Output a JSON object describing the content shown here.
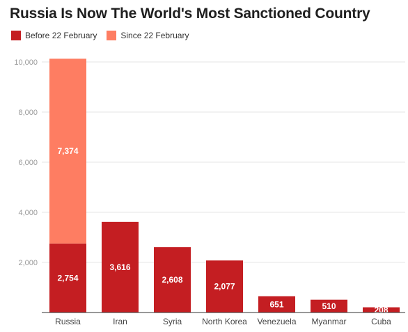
{
  "chart_data": {
    "type": "bar",
    "stacked": true,
    "title": "Russia Is Now The World's Most Sanctioned Country",
    "categories": [
      "Russia",
      "Iran",
      "Syria",
      "North Korea",
      "Venezuela",
      "Myanmar",
      "Cuba"
    ],
    "series": [
      {
        "name": "Before 22 February",
        "color": "#c41e22",
        "values": [
          2754,
          3616,
          2608,
          2077,
          651,
          510,
          208
        ],
        "labels": [
          "2,754",
          "3,616",
          "2,608",
          "2,077",
          "651",
          "510",
          "208"
        ]
      },
      {
        "name": "Since 22 February",
        "color": "#fe7d62",
        "values": [
          7374,
          0,
          0,
          0,
          0,
          0,
          0
        ],
        "labels": [
          "7,374",
          "",
          "",
          "",
          "",
          "",
          ""
        ]
      }
    ],
    "yticks": [
      2000,
      4000,
      6000,
      8000,
      10000
    ],
    "ytick_labels": [
      "2,000",
      "4,000",
      "6,000",
      "8,000",
      "10,000"
    ],
    "ylim": [
      0,
      10000
    ],
    "grid": true,
    "legend_position": "top-left",
    "xlabel": "",
    "ylabel": ""
  }
}
